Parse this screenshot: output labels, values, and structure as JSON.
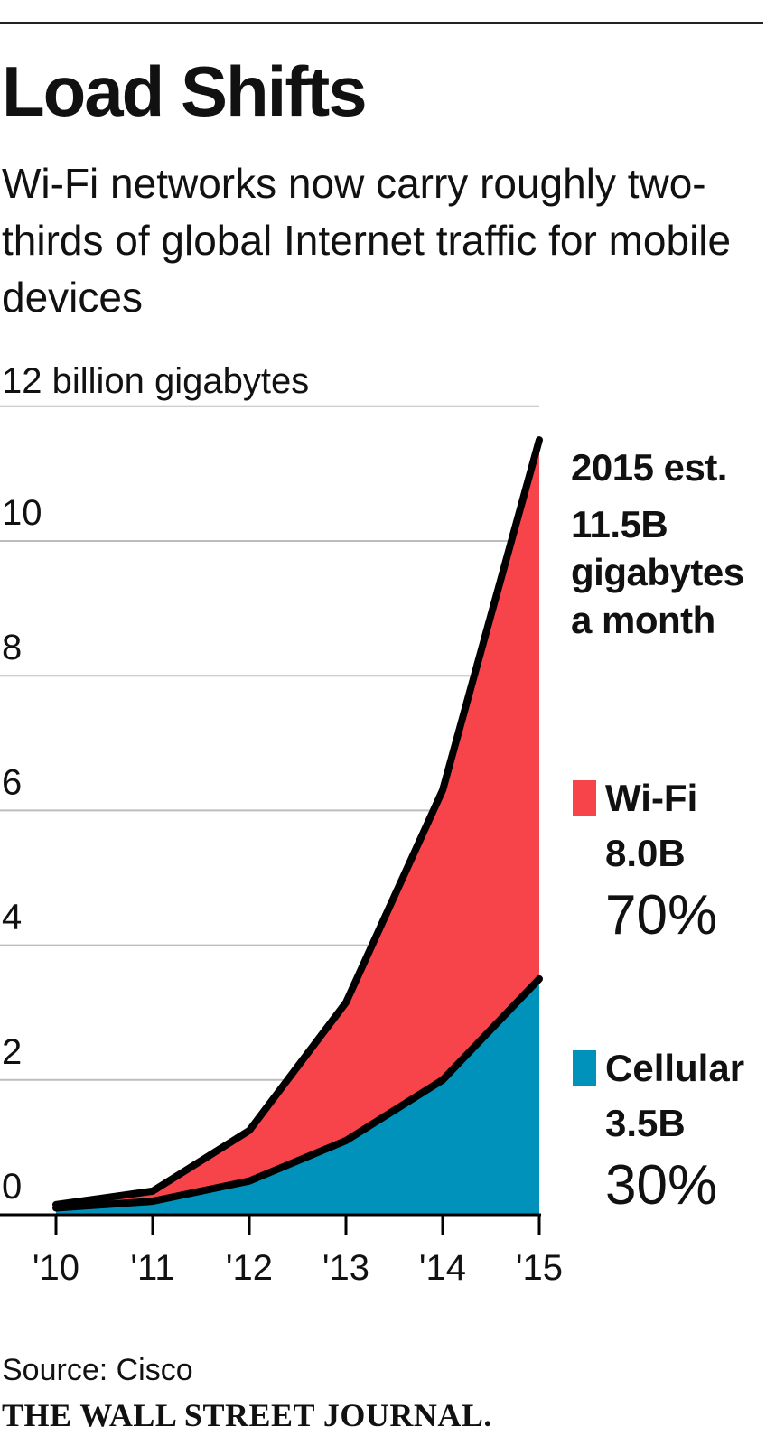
{
  "header": {
    "title": "Load Shifts",
    "subtitle": "Wi-Fi networks now carry roughly two-thirds of global Internet traffic for mobile devices",
    "unit_label": "12 billion gigabytes"
  },
  "annotation": {
    "line1": "2015 est.",
    "line2": "11.5B",
    "line3": "gigabytes",
    "line4": "a month"
  },
  "legend": [
    {
      "name": "Wi-Fi",
      "value": "8.0B",
      "share": "70%",
      "color": "#f7434a"
    },
    {
      "name": "Cellular",
      "value": "3.5B",
      "share": "30%",
      "color": "#0092bb"
    }
  ],
  "footer": {
    "source": "Source: Cisco",
    "publisher": "THE WALL STREET JOURNAL."
  },
  "chart_data": {
    "type": "area",
    "stacked": true,
    "x": [
      "'10",
      "'11",
      "'12",
      "'13",
      "'14",
      "'15"
    ],
    "series": [
      {
        "name": "Cellular",
        "color": "#0092bb",
        "values": [
          0.1,
          0.2,
          0.5,
          1.1,
          2.0,
          3.5
        ]
      },
      {
        "name": "Wi-Fi",
        "color": "#f7434a",
        "values": [
          0.05,
          0.15,
          0.75,
          2.05,
          4.3,
          8.0
        ]
      }
    ],
    "totals": [
      0.15,
      0.35,
      1.25,
      3.15,
      6.3,
      11.5
    ],
    "y_ticks": [
      0,
      2,
      4,
      6,
      8,
      10
    ],
    "ylim": [
      0,
      12
    ],
    "grid": true,
    "title": "Load Shifts",
    "ylabel": "12 billion gigabytes",
    "xlabel": ""
  }
}
